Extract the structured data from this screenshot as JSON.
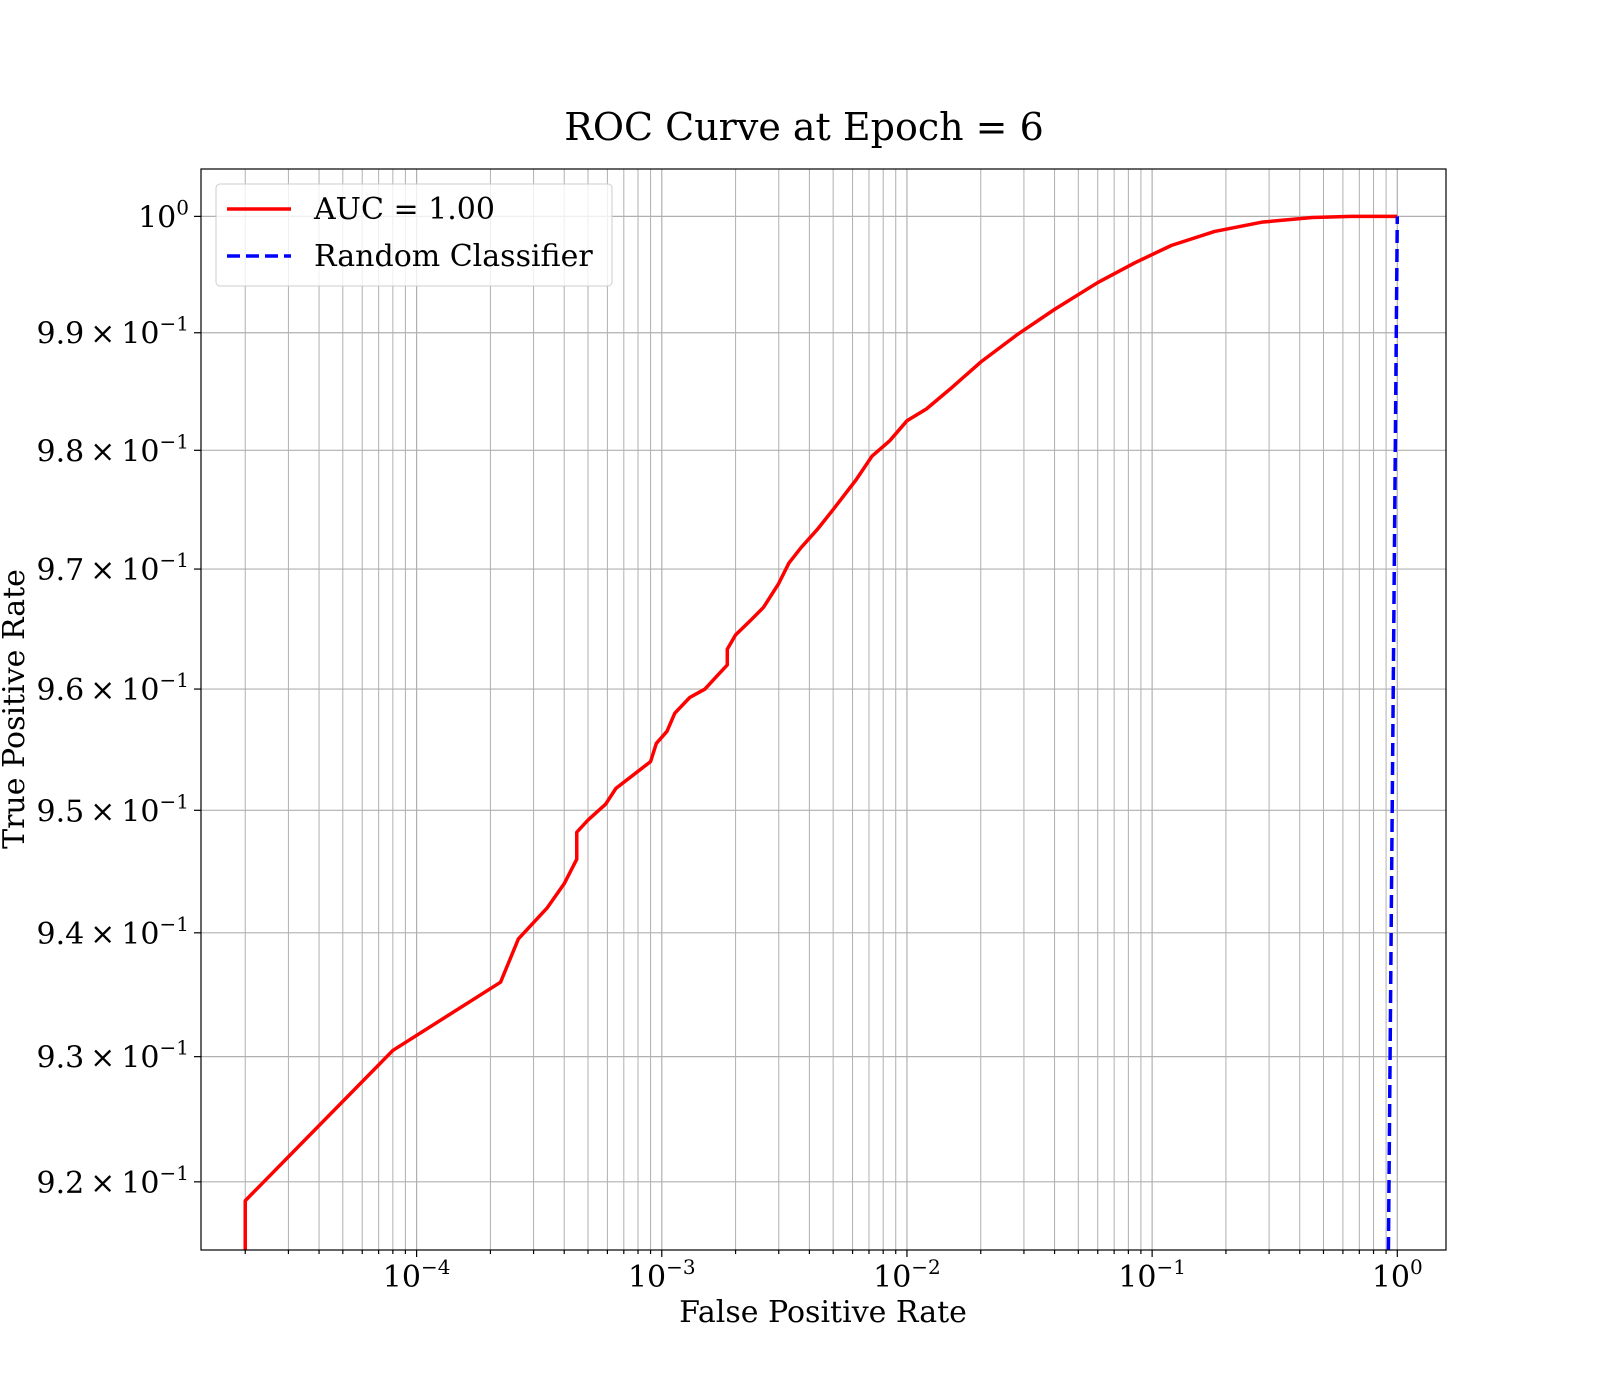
{
  "chart_data": {
    "type": "line",
    "title": "ROC Curve at Epoch = 6",
    "xlabel": "False Positive Rate",
    "ylabel": "True Positive Rate",
    "xscale": "log",
    "yscale": "log",
    "xlim": [
      1.32e-05,
      1.58
    ],
    "ylim": [
      0.9146,
      1.0041
    ],
    "grid": "major and minor",
    "legend_position": "top-left",
    "x_ticks": [
      {
        "base": "10",
        "exp": "−4",
        "value": 0.0001
      },
      {
        "base": "10",
        "exp": "−3",
        "value": 0.001
      },
      {
        "base": "10",
        "exp": "−2",
        "value": 0.01
      },
      {
        "base": "10",
        "exp": "−1",
        "value": 0.1
      },
      {
        "base": "10",
        "exp": "0",
        "value": 1
      }
    ],
    "y_ticks": [
      {
        "mant": "",
        "base": "10",
        "exp": "0",
        "value": 1.0
      },
      {
        "mant": "9.9",
        "base": "10",
        "exp": "−1",
        "value": 0.99
      },
      {
        "mant": "9.8",
        "base": "10",
        "exp": "−1",
        "value": 0.98
      },
      {
        "mant": "9.7",
        "base": "10",
        "exp": "−1",
        "value": 0.97
      },
      {
        "mant": "9.6",
        "base": "10",
        "exp": "−1",
        "value": 0.96
      },
      {
        "mant": "9.5",
        "base": "10",
        "exp": "−1",
        "value": 0.95
      },
      {
        "mant": "9.4",
        "base": "10",
        "exp": "−1",
        "value": 0.94
      },
      {
        "mant": "9.3",
        "base": "10",
        "exp": "−1",
        "value": 0.93
      },
      {
        "mant": "9.2",
        "base": "10",
        "exp": "−1",
        "value": 0.92
      }
    ],
    "series": [
      {
        "name": "AUC = 1.00",
        "color": "#ff0000",
        "style": "solid",
        "points": [
          [
            2e-05,
            0.9146
          ],
          [
            2e-05,
            0.9185
          ],
          [
            8e-05,
            0.9305
          ],
          [
            0.00022,
            0.936
          ],
          [
            0.00026,
            0.9395
          ],
          [
            0.00034,
            0.942
          ],
          [
            0.0004,
            0.944
          ],
          [
            0.00045,
            0.946
          ],
          [
            0.00045,
            0.9482
          ],
          [
            0.0005,
            0.9492
          ],
          [
            0.00059,
            0.9505
          ],
          [
            0.00065,
            0.9518
          ],
          [
            0.0009,
            0.954
          ],
          [
            0.00095,
            0.9555
          ],
          [
            0.00105,
            0.9565
          ],
          [
            0.00113,
            0.958
          ],
          [
            0.0013,
            0.9593
          ],
          [
            0.0015,
            0.96
          ],
          [
            0.0017,
            0.9612
          ],
          [
            0.00185,
            0.962
          ],
          [
            0.00185,
            0.9633
          ],
          [
            0.002,
            0.9645
          ],
          [
            0.0023,
            0.9657
          ],
          [
            0.0026,
            0.9668
          ],
          [
            0.003,
            0.9688
          ],
          [
            0.0033,
            0.9705
          ],
          [
            0.0037,
            0.9718
          ],
          [
            0.0043,
            0.9733
          ],
          [
            0.005,
            0.975
          ],
          [
            0.0062,
            0.9775
          ],
          [
            0.0072,
            0.9795
          ],
          [
            0.0085,
            0.9808
          ],
          [
            0.01,
            0.9825
          ],
          [
            0.012,
            0.9835
          ],
          [
            0.015,
            0.9852
          ],
          [
            0.02,
            0.9875
          ],
          [
            0.028,
            0.9898
          ],
          [
            0.04,
            0.992
          ],
          [
            0.06,
            0.9943
          ],
          [
            0.085,
            0.996
          ],
          [
            0.12,
            0.9975
          ],
          [
            0.18,
            0.9987
          ],
          [
            0.28,
            0.9995
          ],
          [
            0.45,
            0.9999
          ],
          [
            0.65,
            1.0
          ],
          [
            1.0,
            1.0
          ]
        ]
      },
      {
        "name": "Random Classifier",
        "color": "#0000ff",
        "style": "dashed",
        "points": [
          [
            0.92,
            0.9146
          ],
          [
            1.0,
            1.0
          ]
        ]
      }
    ]
  }
}
